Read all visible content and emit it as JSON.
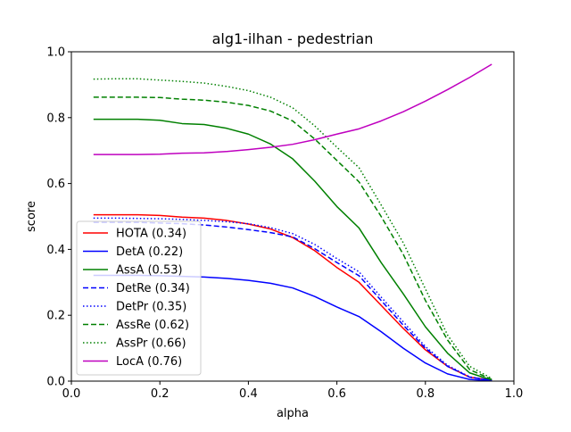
{
  "chart_data": {
    "type": "line",
    "title": "alg1-ilhan - pedestrian",
    "xlabel": "alpha",
    "ylabel": "score",
    "xlim": [
      0.0,
      1.0
    ],
    "ylim": [
      0.0,
      1.0
    ],
    "xticks": [
      "0.0",
      "0.2",
      "0.4",
      "0.6",
      "0.8",
      "1.0"
    ],
    "yticks": [
      "0.0",
      "0.2",
      "0.4",
      "0.6",
      "0.8",
      "1.0"
    ],
    "grid": false,
    "legend_position": "lower-left",
    "x": [
      0.05,
      0.1,
      0.15,
      0.2,
      0.25,
      0.3,
      0.35,
      0.4,
      0.45,
      0.5,
      0.55,
      0.6,
      0.65,
      0.7,
      0.75,
      0.8,
      0.85,
      0.9,
      0.95
    ],
    "series": [
      {
        "name": "HOTA (0.34)",
        "color": "#ff0000",
        "dash": "solid",
        "values": [
          0.505,
          0.505,
          0.505,
          0.503,
          0.498,
          0.495,
          0.488,
          0.477,
          0.462,
          0.436,
          0.396,
          0.345,
          0.3,
          0.23,
          0.16,
          0.095,
          0.045,
          0.012,
          0.003
        ]
      },
      {
        "name": "DetA (0.22)",
        "color": "#0000ff",
        "dash": "solid",
        "values": [
          0.321,
          0.321,
          0.321,
          0.32,
          0.318,
          0.316,
          0.312,
          0.306,
          0.297,
          0.283,
          0.257,
          0.225,
          0.196,
          0.15,
          0.1,
          0.055,
          0.022,
          0.005,
          0.001
        ]
      },
      {
        "name": "AssA (0.53)",
        "color": "#008000",
        "dash": "solid",
        "values": [
          0.795,
          0.795,
          0.795,
          0.792,
          0.782,
          0.779,
          0.768,
          0.75,
          0.72,
          0.675,
          0.607,
          0.53,
          0.465,
          0.36,
          0.265,
          0.165,
          0.085,
          0.025,
          0.003
        ]
      },
      {
        "name": "DetRe (0.34)",
        "color": "#0000ff",
        "dash": "dashed",
        "values": [
          0.482,
          0.482,
          0.482,
          0.48,
          0.478,
          0.474,
          0.468,
          0.46,
          0.451,
          0.438,
          0.402,
          0.36,
          0.32,
          0.245,
          0.17,
          0.1,
          0.045,
          0.012,
          0.002
        ]
      },
      {
        "name": "DetPr (0.35)",
        "color": "#0000ff",
        "dash": "dotted",
        "values": [
          0.495,
          0.495,
          0.494,
          0.493,
          0.491,
          0.488,
          0.484,
          0.478,
          0.466,
          0.448,
          0.415,
          0.372,
          0.332,
          0.255,
          0.18,
          0.105,
          0.048,
          0.013,
          0.002
        ]
      },
      {
        "name": "AssRe (0.62)",
        "color": "#008000",
        "dash": "dashed",
        "values": [
          0.862,
          0.862,
          0.862,
          0.861,
          0.856,
          0.853,
          0.847,
          0.837,
          0.82,
          0.79,
          0.735,
          0.67,
          0.605,
          0.5,
          0.385,
          0.245,
          0.125,
          0.035,
          0.005
        ]
      },
      {
        "name": "AssPr (0.66)",
        "color": "#008000",
        "dash": "dotted",
        "values": [
          0.917,
          0.918,
          0.918,
          0.914,
          0.91,
          0.905,
          0.895,
          0.882,
          0.862,
          0.83,
          0.775,
          0.71,
          0.648,
          0.535,
          0.42,
          0.28,
          0.14,
          0.045,
          0.008
        ]
      },
      {
        "name": "LocA (0.76)",
        "color": "#bf00bf",
        "dash": "solid",
        "values": [
          0.688,
          0.688,
          0.688,
          0.689,
          0.692,
          0.693,
          0.697,
          0.703,
          0.71,
          0.719,
          0.733,
          0.75,
          0.766,
          0.79,
          0.818,
          0.85,
          0.885,
          0.922,
          0.962
        ]
      }
    ]
  }
}
